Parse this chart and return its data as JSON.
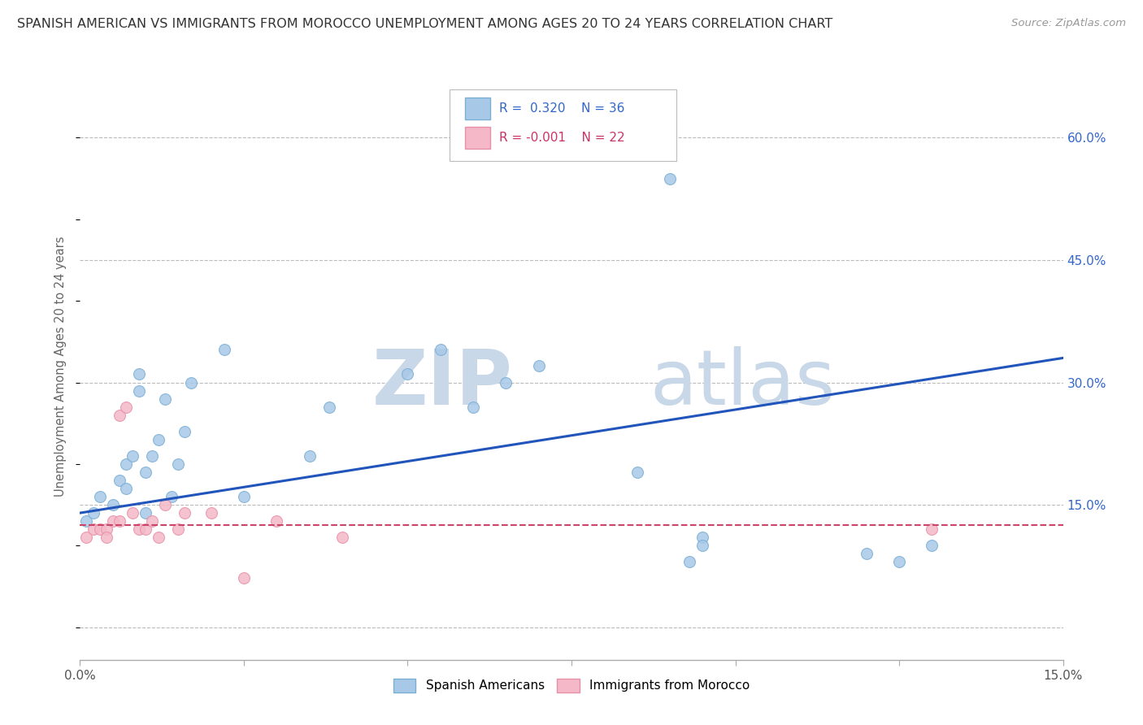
{
  "title": "SPANISH AMERICAN VS IMMIGRANTS FROM MOROCCO UNEMPLOYMENT AMONG AGES 20 TO 24 YEARS CORRELATION CHART",
  "source": "Source: ZipAtlas.com",
  "ylabel": "Unemployment Among Ages 20 to 24 years",
  "xlim": [
    0.0,
    0.15
  ],
  "ylim": [
    -0.04,
    0.68
  ],
  "yticks_right": [
    0.0,
    0.15,
    0.3,
    0.45,
    0.6
  ],
  "ytick_labels_right": [
    "",
    "15.0%",
    "30.0%",
    "45.0%",
    "60.0%"
  ],
  "blue_scatter_x": [
    0.001,
    0.002,
    0.003,
    0.005,
    0.006,
    0.007,
    0.007,
    0.008,
    0.009,
    0.009,
    0.01,
    0.01,
    0.011,
    0.012,
    0.013,
    0.014,
    0.015,
    0.016,
    0.017,
    0.022,
    0.025,
    0.035,
    0.038,
    0.05,
    0.055,
    0.06,
    0.065,
    0.07,
    0.085,
    0.09,
    0.093,
    0.095,
    0.095,
    0.12,
    0.125,
    0.13
  ],
  "blue_scatter_y": [
    0.13,
    0.14,
    0.16,
    0.15,
    0.18,
    0.17,
    0.2,
    0.21,
    0.29,
    0.31,
    0.14,
    0.19,
    0.21,
    0.23,
    0.28,
    0.16,
    0.2,
    0.24,
    0.3,
    0.34,
    0.16,
    0.21,
    0.27,
    0.31,
    0.34,
    0.27,
    0.3,
    0.32,
    0.19,
    0.55,
    0.08,
    0.11,
    0.1,
    0.09,
    0.08,
    0.1
  ],
  "pink_scatter_x": [
    0.001,
    0.002,
    0.003,
    0.004,
    0.004,
    0.005,
    0.006,
    0.006,
    0.007,
    0.008,
    0.009,
    0.01,
    0.011,
    0.012,
    0.013,
    0.015,
    0.016,
    0.02,
    0.025,
    0.03,
    0.04,
    0.13
  ],
  "pink_scatter_y": [
    0.11,
    0.12,
    0.12,
    0.12,
    0.11,
    0.13,
    0.13,
    0.26,
    0.27,
    0.14,
    0.12,
    0.12,
    0.13,
    0.11,
    0.15,
    0.12,
    0.14,
    0.14,
    0.06,
    0.13,
    0.11,
    0.12
  ],
  "blue_line_x": [
    0.0,
    0.15
  ],
  "blue_line_y": [
    0.14,
    0.33
  ],
  "pink_line_x": [
    0.0,
    0.15
  ],
  "pink_line_y": [
    0.125,
    0.125
  ],
  "scatter_size": 100,
  "blue_color": "#a8c8e8",
  "blue_edge": "#7aafd4",
  "pink_color": "#f4b8c8",
  "pink_edge": "#e890a8",
  "blue_line_color": "#2255bb",
  "pink_line_color": "#cc4466",
  "bg_color": "#ffffff",
  "grid_color": "#bbbbbb",
  "watermark_zip_color": "#c8d8e8",
  "watermark_atlas_color": "#c8d8e8",
  "title_fontsize": 11.5,
  "source_fontsize": 9.5,
  "axis_color": "#aaaaaa"
}
